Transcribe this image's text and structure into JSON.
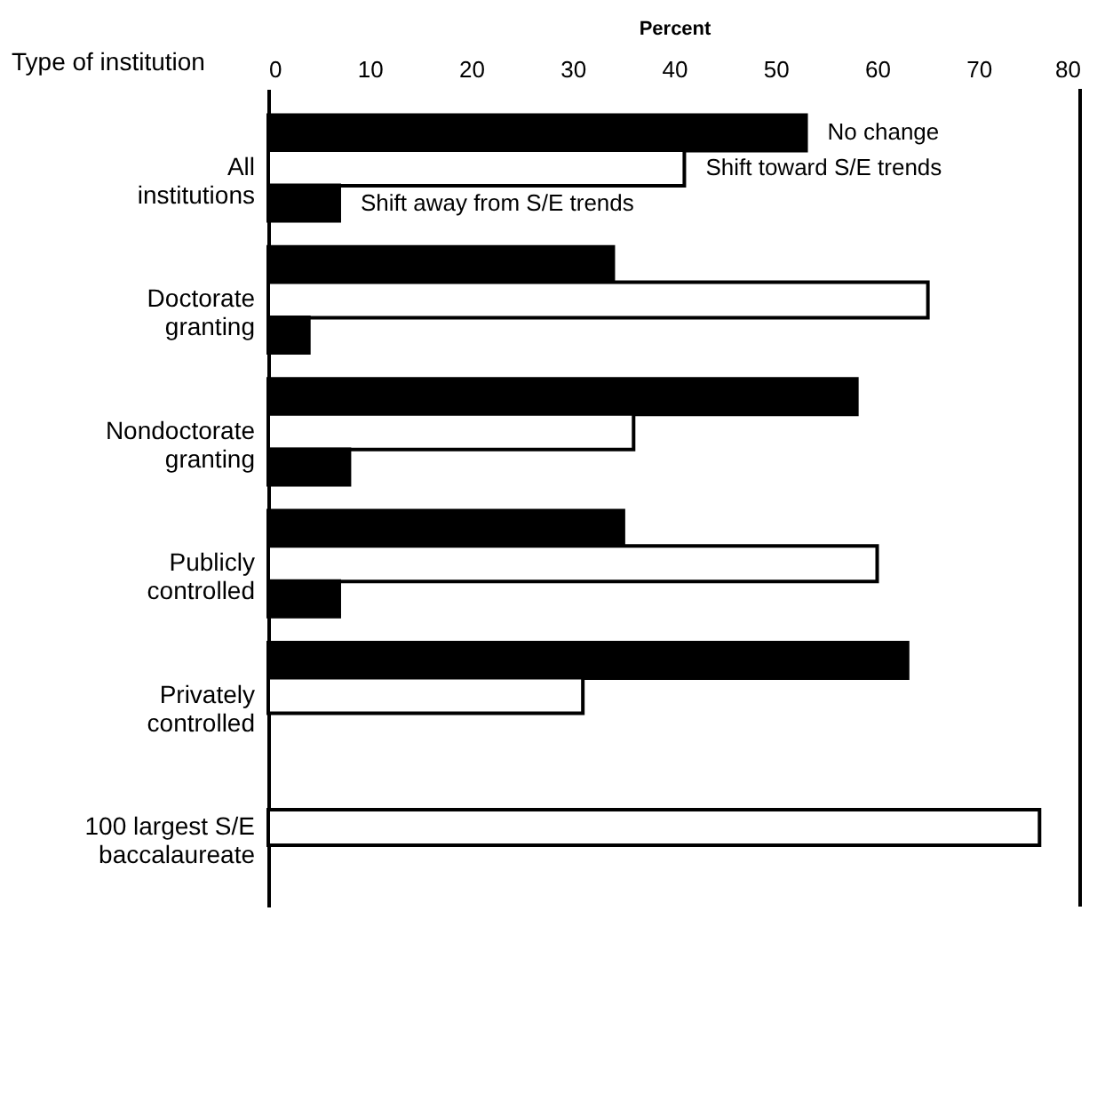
{
  "chart_data": {
    "type": "bar",
    "orientation": "horizontal",
    "xlabel": "Percent",
    "ylabel": "Type of institution",
    "categories": [
      "All institutions",
      "Doctorate granting",
      "Nondoctorate granting",
      "Publicly controlled",
      "Privately controlled",
      "100 largest S/E baccalaureate"
    ],
    "series": [
      {
        "name": "No change",
        "color": "#000000",
        "values": [
          53,
          34,
          58,
          35,
          63,
          null
        ]
      },
      {
        "name": "Shift toward S/E trends",
        "color": "#ffffff",
        "values": [
          41,
          65,
          36,
          60,
          31,
          76
        ]
      },
      {
        "name": "Shift away from S/E trends",
        "color": "#000000",
        "values": [
          7,
          4,
          8,
          7,
          null,
          null
        ]
      }
    ],
    "xlim": [
      0,
      80
    ],
    "xticks": [
      0,
      10,
      20,
      30,
      40,
      50,
      60,
      70,
      80
    ],
    "grid": false,
    "legend": false
  }
}
